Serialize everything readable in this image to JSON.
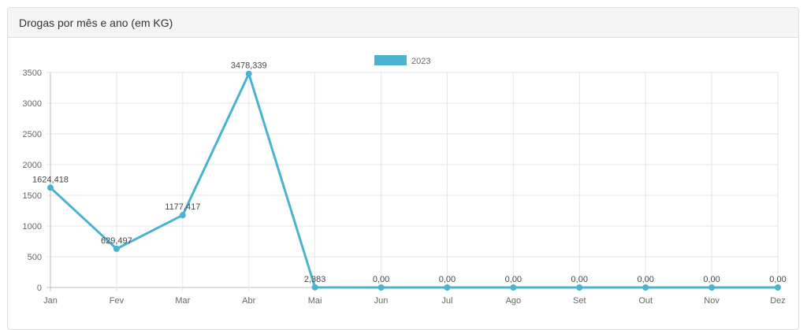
{
  "panel": {
    "title": "Drogas por mês e ano (em KG)"
  },
  "chart_data": {
    "type": "line",
    "title": "",
    "xlabel": "",
    "ylabel": "",
    "categories": [
      "Jan",
      "Fev",
      "Mar",
      "Abr",
      "Mai",
      "Jun",
      "Jul",
      "Ago",
      "Set",
      "Out",
      "Nov",
      "Dez"
    ],
    "series": [
      {
        "name": "2023",
        "color": "#4ab3cf",
        "values": [
          1624.418,
          629.497,
          1177.417,
          3478.339,
          2.383,
          0,
          0,
          0,
          0,
          0,
          0,
          0
        ],
        "labels": [
          "1624,418",
          "629,497",
          "1177,417",
          "3478,339",
          "2,383",
          "0,00",
          "0,00",
          "0,00",
          "0,00",
          "0,00",
          "0,00",
          "0,00"
        ]
      }
    ],
    "ylim": [
      0,
      3500
    ],
    "yticks": [
      0,
      500,
      1000,
      1500,
      2000,
      2500,
      3000,
      3500
    ],
    "grid": true,
    "legend": "top-center"
  }
}
